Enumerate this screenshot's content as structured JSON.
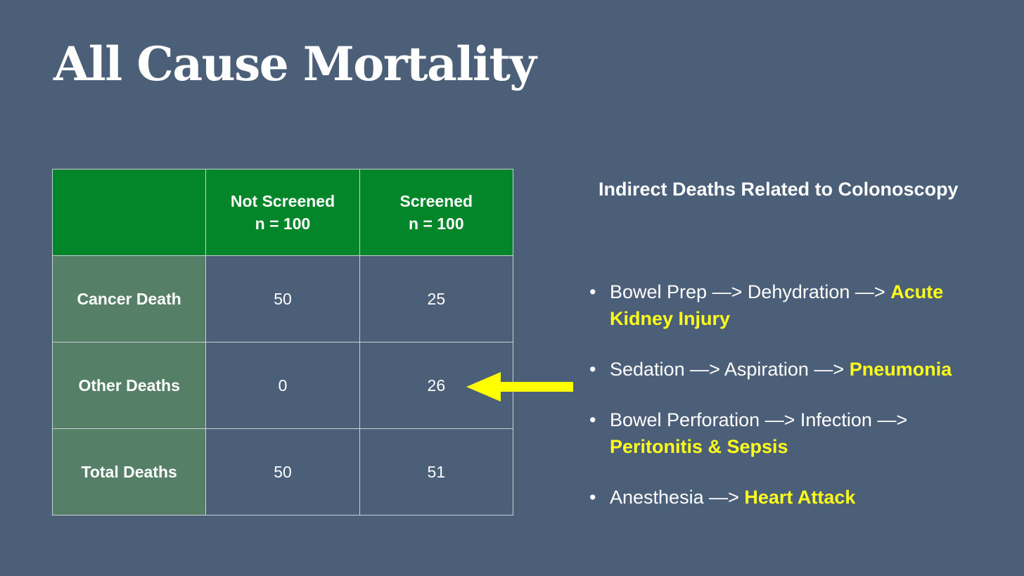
{
  "slide": {
    "title": "All Cause Mortality"
  },
  "table": {
    "headers": [
      "",
      "Not Screened\nn = 100",
      "Screened\nn = 100"
    ],
    "rows": [
      {
        "label": "Cancer Death",
        "not_screened": "50",
        "screened": "25"
      },
      {
        "label": "Other Deaths",
        "not_screened": "0",
        "screened": "26"
      },
      {
        "label": "Total Deaths",
        "not_screened": "50",
        "screened": "51"
      }
    ]
  },
  "indirect": {
    "title": "Indirect Deaths Related to Colonoscopy",
    "bullet_char": "•",
    "items": [
      {
        "text": "Bowel Prep —> Dehydration —> ",
        "highlight": "Acute Kidney Injury"
      },
      {
        "text": "Sedation —> Aspiration —> ",
        "highlight": "Pneumonia"
      },
      {
        "text": "Bowel Perforation —> Infection —> ",
        "highlight": "Peritonitis & Sepsis"
      },
      {
        "text": "Anesthesia —> ",
        "highlight": "Heart Attack"
      }
    ]
  },
  "colors": {
    "background": "#4b5f78",
    "header_green": "#038529",
    "row_label_green": "#567f67",
    "highlight_yellow": "#ffff1a",
    "arrow_yellow": "#ffff00"
  },
  "icons": {
    "arrow": "arrow-left-icon"
  }
}
